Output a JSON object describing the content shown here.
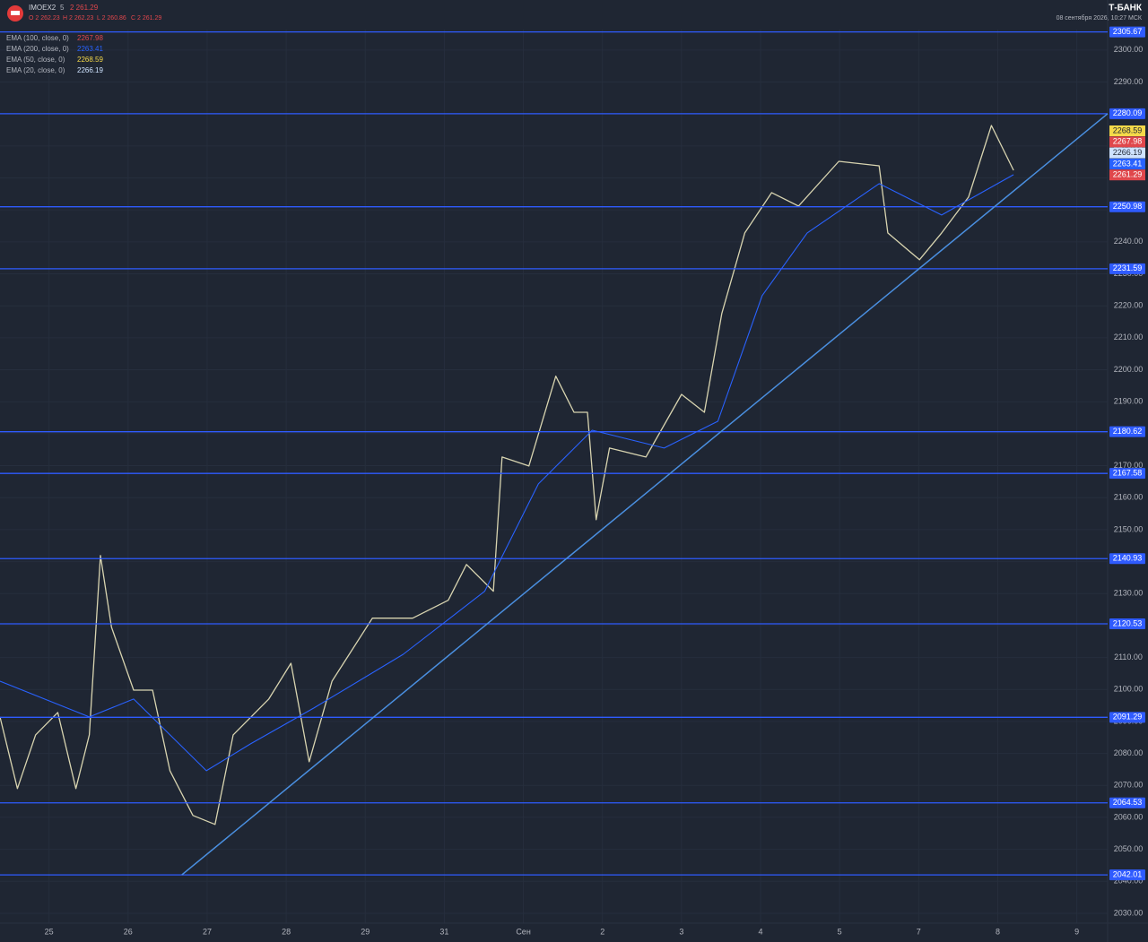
{
  "chart_data": {
    "type": "line",
    "symbol": "IMOEX2",
    "interval": "5",
    "last_label": "2 261.29",
    "ohlc": [
      "O 2 262.23",
      "H 2 262.23",
      "L 2 260.86",
      "C 2 261.29"
    ],
    "brand": "Т-БАНК",
    "timestamp": "08 сентября 2026, 10:27 МСК",
    "indicators": [
      {
        "name": "EMA (100, close, 0)",
        "value": 2267.98,
        "color": "#e0474c"
      },
      {
        "name": "EMA (200, close, 0)",
        "value": 2263.41,
        "color": "#2962ff"
      },
      {
        "name": "EMA (50, close, 0)",
        "value": 2268.59,
        "color": "#f5d949"
      },
      {
        "name": "EMA (20, close, 0)",
        "value": 2266.19,
        "color": "#cfe3ff"
      }
    ],
    "last_price": 2261.29,
    "last_color": "#e0474c",
    "xlim": [
      -0.62,
      13.39
    ],
    "xticks": [
      {
        "value": 0,
        "label": "25"
      },
      {
        "value": 1,
        "label": "26"
      },
      {
        "value": 2,
        "label": "27"
      },
      {
        "value": 3,
        "label": "28"
      },
      {
        "value": 4,
        "label": "29"
      },
      {
        "value": 5,
        "label": "31"
      },
      {
        "value": 6,
        "label": "Сен"
      },
      {
        "value": 7,
        "label": "2"
      },
      {
        "value": 8,
        "label": "3"
      },
      {
        "value": 9,
        "label": "4"
      },
      {
        "value": 10,
        "label": "5"
      },
      {
        "value": 11,
        "label": "7"
      },
      {
        "value": 12,
        "label": "8"
      },
      {
        "value": 13,
        "label": "9"
      }
    ],
    "ylim": [
      2026.9,
      2306.4
    ],
    "yticks": [
      {
        "value": 2030,
        "label": "2030.00"
      },
      {
        "value": 2040,
        "label": "2040.00"
      },
      {
        "value": 2050,
        "label": "2050.00"
      },
      {
        "value": 2060,
        "label": "2060.00"
      },
      {
        "value": 2070,
        "label": "2070.00"
      },
      {
        "value": 2080,
        "label": "2080.00"
      },
      {
        "value": 2090,
        "label": "2090.00"
      },
      {
        "value": 2100,
        "label": "2100.00"
      },
      {
        "value": 2110,
        "label": "2110.00"
      },
      {
        "value": 2120,
        "label": "2120.00"
      },
      {
        "value": 2130,
        "label": "2130.00"
      },
      {
        "value": 2140,
        "label": "2140.00"
      },
      {
        "value": 2150,
        "label": "2150.00"
      },
      {
        "value": 2160,
        "label": "2160.00"
      },
      {
        "value": 2170,
        "label": "2170.00"
      },
      {
        "value": 2180,
        "label": "2180.00"
      },
      {
        "value": 2190,
        "label": "2190.00"
      },
      {
        "value": 2200,
        "label": "2200.00"
      },
      {
        "value": 2210,
        "label": "2210.00"
      },
      {
        "value": 2220,
        "label": "2220.00"
      },
      {
        "value": 2230,
        "label": "2230.00"
      },
      {
        "value": 2240,
        "label": "2240.00"
      },
      {
        "value": 2250,
        "label": "2250.00"
      },
      {
        "value": 2260,
        "label": "2260.00"
      },
      {
        "value": 2270,
        "label": "2270.00"
      },
      {
        "value": 2280,
        "label": "2280.00"
      },
      {
        "value": 2290,
        "label": "2290.00"
      },
      {
        "value": 2300,
        "label": "2300.00"
      }
    ],
    "grid": true,
    "levels": [
      2305.67,
      2280.09,
      2250.98,
      2231.59,
      2180.62,
      2167.58,
      2140.93,
      2120.53,
      2091.29,
      2064.53,
      2042.01
    ],
    "level_color": "#2f5bff",
    "trendline": {
      "x": [
        1.68,
        13.39
      ],
      "y": [
        2042.01,
        2280.09
      ],
      "color": "#4a8fe0"
    },
    "series": [
      {
        "name": "IMOEX2",
        "color": "#d8d4b0",
        "x": [
          -0.62,
          -0.4,
          -0.17,
          0.11,
          0.34,
          0.51,
          0.65,
          0.79,
          1.07,
          1.31,
          1.53,
          1.82,
          2.1,
          2.33,
          2.78,
          3.06,
          3.29,
          3.58,
          4.09,
          4.6,
          5.05,
          5.28,
          5.62,
          5.73,
          6.07,
          6.41,
          6.64,
          6.81,
          6.92,
          7.09,
          7.55,
          8.0,
          8.29,
          8.51,
          8.8,
          9.14,
          9.48,
          9.99,
          10.5,
          10.61,
          11.01,
          11.29,
          11.63,
          11.92,
          12.2
        ],
        "values": [
          2091.4,
          2069,
          2085.8,
          2092.8,
          2069,
          2085.8,
          2141.9,
          2119.5,
          2099.8,
          2099.8,
          2074.6,
          2060.6,
          2057.8,
          2085.8,
          2097,
          2108.2,
          2077.4,
          2102.6,
          2122.3,
          2122.3,
          2127.9,
          2139.1,
          2130.7,
          2172.7,
          2169.9,
          2198,
          2186.7,
          2186.7,
          2153.1,
          2175.5,
          2172.7,
          2192.3,
          2186.7,
          2217.6,
          2242.8,
          2255.4,
          2251.2,
          2265.2,
          2263.8,
          2242.8,
          2234.4,
          2242.8,
          2254,
          2276.4,
          2262.4
        ]
      },
      {
        "name": "EMA (200, close, 0)",
        "color": "#2962ff",
        "x": [
          -0.62,
          0.51,
          1.07,
          1.99,
          2.55,
          3.35,
          4.48,
          5.51,
          6.19,
          6.87,
          7.78,
          8.46,
          9.02,
          9.59,
          10.5,
          11.29,
          12.2
        ],
        "values": [
          2102.6,
          2091.4,
          2097,
          2074.6,
          2083,
          2094.2,
          2111,
          2130.7,
          2164.3,
          2181.1,
          2175.5,
          2183.9,
          2223.2,
          2242.8,
          2258.2,
          2248.4,
          2261
        ]
      }
    ]
  }
}
